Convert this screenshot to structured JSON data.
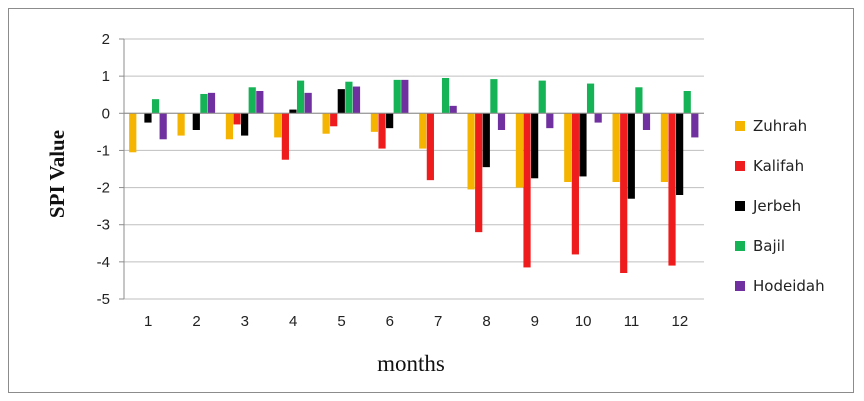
{
  "chart_data": {
    "type": "bar",
    "xlabel": "months",
    "ylabel": "SPI Value",
    "categories": [
      "1",
      "2",
      "3",
      "4",
      "5",
      "6",
      "7",
      "8",
      "9",
      "10",
      "11",
      "12"
    ],
    "ylim": [
      -5,
      2
    ],
    "yticks": [
      2,
      1,
      0,
      -1,
      -2,
      -3,
      -4,
      -5
    ],
    "grid": "horizontal",
    "legend_position": "right",
    "series": [
      {
        "name": "Zuhrah",
        "color": "#f5b400",
        "values": [
          -1.05,
          -0.6,
          -0.7,
          -0.65,
          -0.55,
          -0.5,
          -0.95,
          -2.05,
          -2.0,
          -1.85,
          -1.85,
          -1.85
        ]
      },
      {
        "name": "Kalifah",
        "color": "#ee1c1c",
        "values": [
          0.0,
          0.0,
          -0.3,
          -1.25,
          -0.35,
          -0.95,
          -1.8,
          -3.2,
          -4.15,
          -3.8,
          -4.3,
          -4.1
        ]
      },
      {
        "name": "Jerbeh",
        "color": "#000000",
        "values": [
          -0.25,
          -0.45,
          -0.6,
          0.1,
          0.65,
          -0.4,
          0.0,
          -1.45,
          -1.75,
          -1.7,
          -2.3,
          -2.2
        ]
      },
      {
        "name": "Bajil",
        "color": "#16b356",
        "values": [
          0.38,
          0.52,
          0.7,
          0.88,
          0.85,
          0.9,
          0.95,
          0.92,
          0.88,
          0.8,
          0.7,
          0.6
        ]
      },
      {
        "name": "Hodeidah",
        "color": "#7030a0",
        "values": [
          -0.7,
          0.55,
          0.6,
          0.55,
          0.72,
          0.9,
          0.2,
          -0.45,
          -0.4,
          -0.25,
          -0.45,
          -0.65
        ]
      }
    ]
  }
}
